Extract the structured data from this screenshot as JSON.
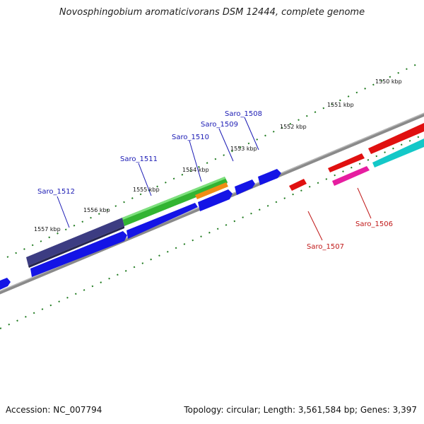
{
  "title": "Novosphingobium aromaticivorans DSM 12444, complete genome",
  "footer": {
    "accession": "Accession: NC_007794",
    "summary": "Topology: circular; Length: 3,561,584 bp; Genes: 3,397"
  },
  "kbp_ticks": [
    "1550 kbp",
    "1551 kbp",
    "1552 kbp",
    "1553 kbp",
    "1554 kbp",
    "1555 kbp",
    "1556 kbp",
    "1557 kbp"
  ],
  "gene_labels": {
    "plus": [
      "Saro_1508",
      "Saro_1509",
      "Saro_1510",
      "Saro_1511",
      "Saro_1512"
    ],
    "minus": [
      "Saro_1506",
      "Saro_1507"
    ]
  },
  "colors": {
    "plus_label": "#1a1ab4",
    "minus_label": "#c01818",
    "backbone": "#8a8a8a",
    "tick": "#1e7a1e",
    "blue": "#1414e6",
    "red": "#e01010",
    "navy": "#3c3c82",
    "green": "#32b432",
    "orange": "#f08c14",
    "magenta": "#e61ea0",
    "cyan": "#14c8c8"
  }
}
